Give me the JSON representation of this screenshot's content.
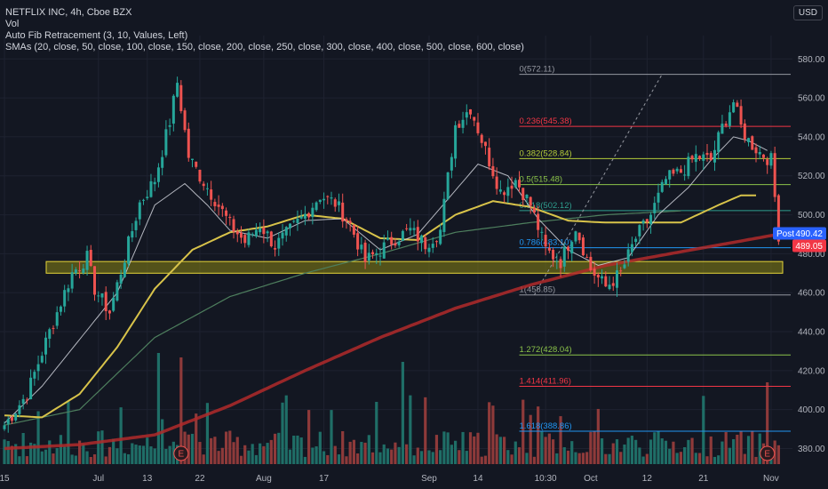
{
  "legend": {
    "title": "NETFLIX INC, 4h, Cboe BZX",
    "vol": "Vol",
    "fib": "Auto Fib Retracement (3, 10, Values, Left)",
    "smas": "SMAs (20, close, 50, close, 100, close, 150, close, 200, close, 250, close, 300, close, 400, close, 500, close, 600, close)"
  },
  "currency_label": "USD",
  "colors": {
    "background": "#131722",
    "grid": "#1e2230",
    "axis_text": "#b2b5be",
    "up": "#26a69a",
    "down": "#ef5350",
    "vol_up": "#1f6e67",
    "vol_down": "#8e3a3a",
    "sma_white": "#d1d4dc",
    "sma_yellow": "#d8c34a",
    "sma_green": "#4e7f5e",
    "sma_red": "#b22a2a",
    "zone_fill": "#7f7a15",
    "zone_border": "#e6d63a",
    "post_badge": "#2962ff",
    "price_badge": "#f23645"
  },
  "badges": {
    "post_label": "Post",
    "post_value": "490.42",
    "price_value": "489.05"
  },
  "earnings_marker": "E",
  "chart_data": {
    "type": "candlestick",
    "title": "NETFLIX INC, 4h, Cboe BZX",
    "ylim": [
      372,
      592
    ],
    "y_ticks": [
      380,
      400,
      420,
      440,
      460,
      480,
      500,
      520,
      540,
      560,
      580
    ],
    "x_ticks": [
      "15",
      "Jul",
      "13",
      "22",
      "Aug",
      "17",
      "Sep",
      "14",
      "10:30",
      "Oct",
      "12",
      "21",
      "Nov"
    ],
    "support_zone": [
      470,
      476
    ],
    "fib_levels": [
      {
        "label": "0(572.11)",
        "ratio": 0,
        "price": 572.11,
        "color": "#9598a1"
      },
      {
        "label": "0.236(545.38)",
        "ratio": 0.236,
        "price": 545.38,
        "color": "#f23645"
      },
      {
        "label": "0.382(528.84)",
        "ratio": 0.382,
        "price": 528.84,
        "color": "#b5cc39"
      },
      {
        "label": "0.5(515.48)",
        "ratio": 0.5,
        "price": 515.48,
        "color": "#8bc34a"
      },
      {
        "label": "0.618(502.12)",
        "ratio": 0.618,
        "price": 502.12,
        "color": "#2e9e8e"
      },
      {
        "label": "0.786(483.10)",
        "ratio": 0.786,
        "price": 483.1,
        "color": "#2196f3"
      },
      {
        "label": "1(458.85)",
        "ratio": 1,
        "price": 458.85,
        "color": "#9598a1"
      },
      {
        "label": "1.272(428.04)",
        "ratio": 1.272,
        "price": 428.04,
        "color": "#8bc34a"
      },
      {
        "label": "1.414(411.96)",
        "ratio": 1.414,
        "price": 411.96,
        "color": "#f23645"
      },
      {
        "label": "1.618(388.86)",
        "ratio": 1.618,
        "price": 388.86,
        "color": "#2196f3"
      }
    ],
    "anchors": [
      [
        0,
        392
      ],
      [
        6,
        408
      ],
      [
        12,
        440
      ],
      [
        18,
        470
      ],
      [
        22,
        478
      ],
      [
        24,
        462
      ],
      [
        28,
        450
      ],
      [
        32,
        478
      ],
      [
        36,
        506
      ],
      [
        40,
        518
      ],
      [
        44,
        548
      ],
      [
        46,
        568
      ],
      [
        49,
        530
      ],
      [
        52,
        520
      ],
      [
        56,
        508
      ],
      [
        60,
        495
      ],
      [
        64,
        486
      ],
      [
        68,
        495
      ],
      [
        72,
        484
      ],
      [
        76,
        492
      ],
      [
        80,
        500
      ],
      [
        84,
        510
      ],
      [
        88,
        506
      ],
      [
        92,
        495
      ],
      [
        96,
        476
      ],
      [
        100,
        482
      ],
      [
        104,
        488
      ],
      [
        108,
        492
      ],
      [
        112,
        485
      ],
      [
        116,
        492
      ],
      [
        120,
        546
      ],
      [
        124,
        555
      ],
      [
        128,
        533
      ],
      [
        132,
        512
      ],
      [
        136,
        518
      ],
      [
        140,
        505
      ],
      [
        144,
        482
      ],
      [
        148,
        476
      ],
      [
        152,
        494
      ],
      [
        156,
        472
      ],
      [
        160,
        463
      ],
      [
        164,
        470
      ],
      [
        168,
        488
      ],
      [
        172,
        500
      ],
      [
        176,
        518
      ],
      [
        180,
        522
      ],
      [
        184,
        530
      ],
      [
        188,
        528
      ],
      [
        191,
        545
      ],
      [
        194,
        558
      ],
      [
        196,
        545
      ],
      [
        198,
        538
      ],
      [
        201,
        532
      ],
      [
        204,
        528
      ],
      [
        206,
        490
      ]
    ],
    "sma_white_points": [
      [
        0,
        393
      ],
      [
        10,
        412
      ],
      [
        20,
        436
      ],
      [
        30,
        460
      ],
      [
        40,
        505
      ],
      [
        48,
        516
      ],
      [
        54,
        505
      ],
      [
        60,
        492
      ],
      [
        70,
        488
      ],
      [
        80,
        497
      ],
      [
        90,
        498
      ],
      [
        100,
        482
      ],
      [
        110,
        490
      ],
      [
        118,
        508
      ],
      [
        126,
        526
      ],
      [
        134,
        520
      ],
      [
        142,
        498
      ],
      [
        150,
        482
      ],
      [
        158,
        474
      ],
      [
        166,
        478
      ],
      [
        174,
        500
      ],
      [
        182,
        514
      ],
      [
        188,
        528
      ],
      [
        194,
        540
      ],
      [
        198,
        538
      ],
      [
        203,
        533
      ]
    ],
    "sma_yellow_points": [
      [
        0,
        397
      ],
      [
        10,
        396
      ],
      [
        20,
        408
      ],
      [
        30,
        432
      ],
      [
        40,
        462
      ],
      [
        50,
        482
      ],
      [
        60,
        491
      ],
      [
        70,
        494
      ],
      [
        80,
        500
      ],
      [
        90,
        498
      ],
      [
        100,
        488
      ],
      [
        110,
        487
      ],
      [
        120,
        500
      ],
      [
        130,
        507
      ],
      [
        140,
        504
      ],
      [
        150,
        497
      ],
      [
        160,
        496
      ],
      [
        170,
        496
      ],
      [
        180,
        496
      ],
      [
        190,
        505
      ],
      [
        196,
        510
      ],
      [
        200,
        510
      ]
    ],
    "sma_green_points": [
      [
        0,
        392
      ],
      [
        20,
        400
      ],
      [
        40,
        437
      ],
      [
        60,
        458
      ],
      [
        80,
        470
      ],
      [
        100,
        480
      ],
      [
        120,
        491
      ],
      [
        140,
        496
      ],
      [
        160,
        500
      ],
      [
        180,
        502
      ]
    ],
    "sma_red_points": [
      [
        0,
        380
      ],
      [
        20,
        382
      ],
      [
        40,
        387
      ],
      [
        60,
        402
      ],
      [
        80,
        420
      ],
      [
        100,
        437
      ],
      [
        120,
        452
      ],
      [
        140,
        464
      ],
      [
        160,
        474
      ],
      [
        180,
        481
      ],
      [
        206,
        490
      ]
    ],
    "earnings_marks": [
      [
        "Jul",
        47
      ],
      [
        "Oct",
        203
      ]
    ],
    "last_close": 489.05,
    "post_market": 490.42
  }
}
